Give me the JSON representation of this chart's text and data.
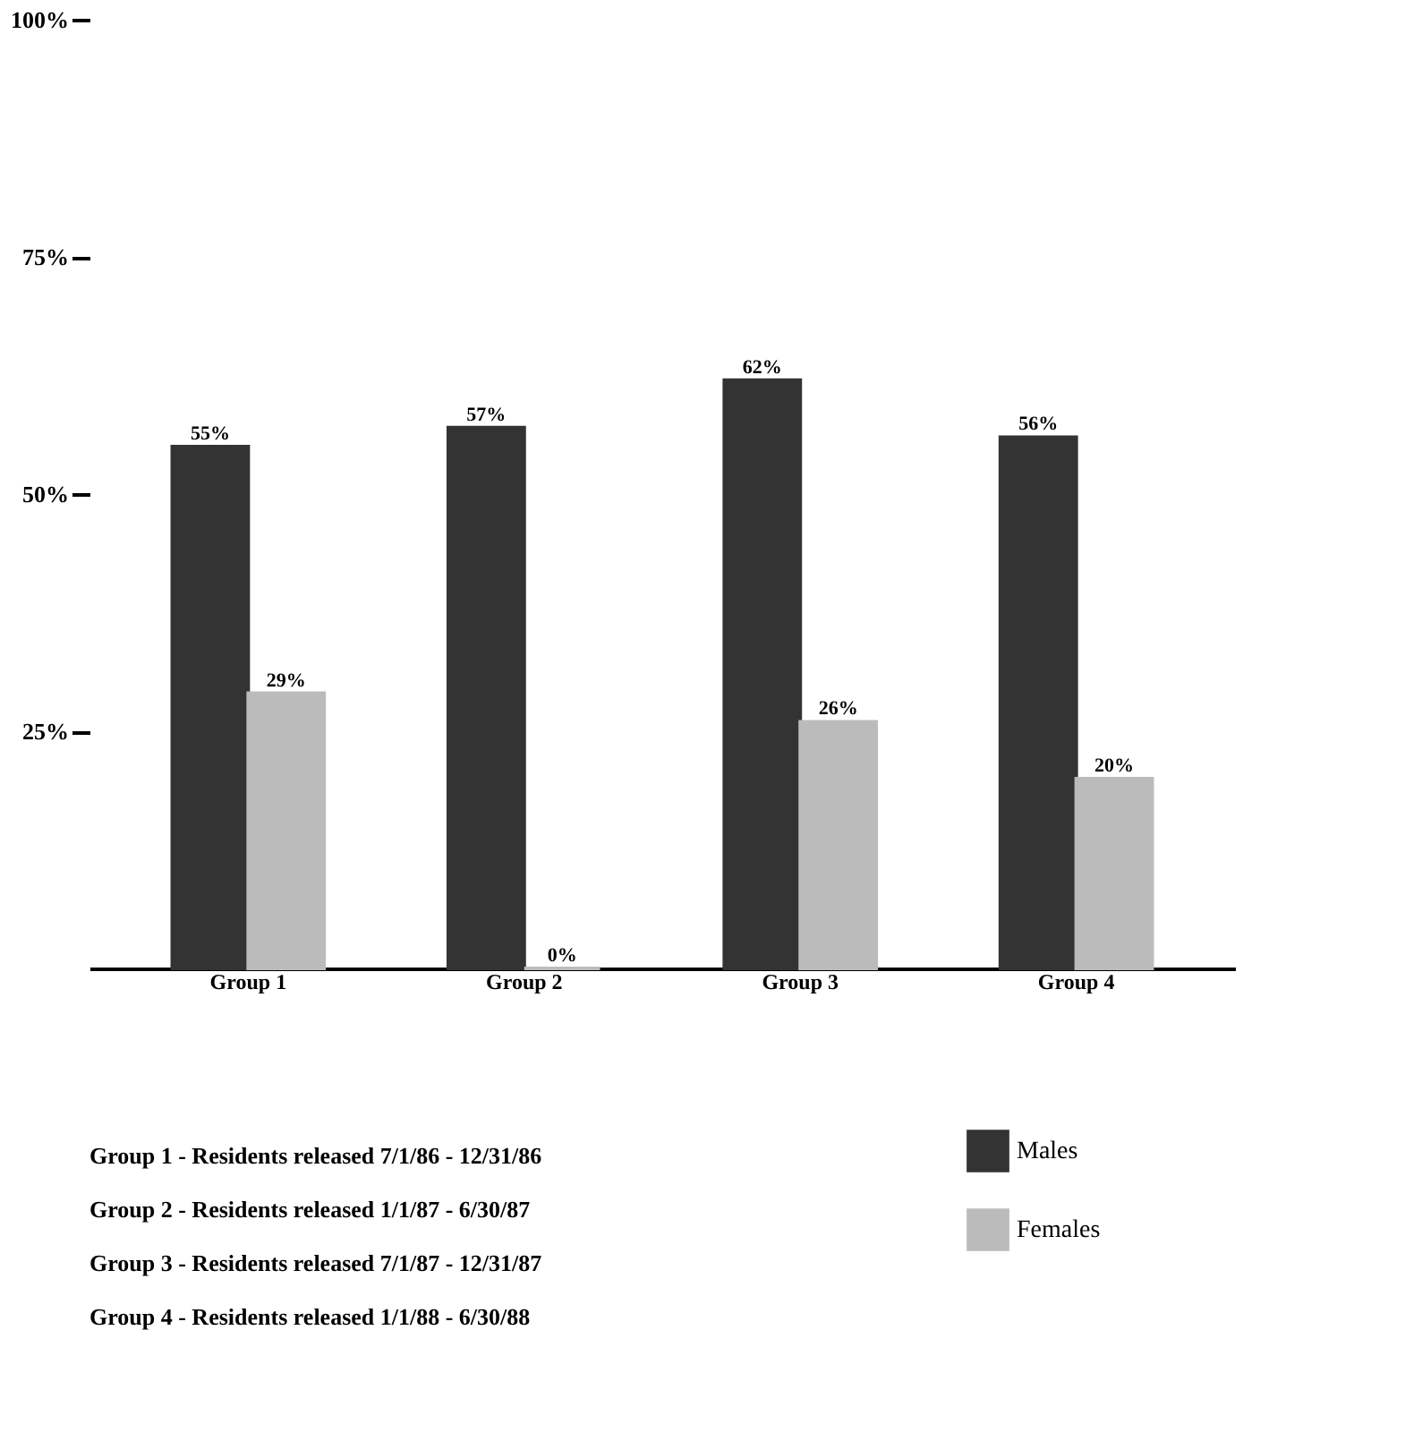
{
  "chart_data": {
    "type": "bar",
    "categories": [
      "Group 1",
      "Group 2",
      "Group 3",
      "Group 4"
    ],
    "series": [
      {
        "name": "Males",
        "color": "#333333",
        "values": [
          55,
          57,
          62,
          56
        ],
        "value_labels": [
          "55%",
          "57%",
          "62%",
          "56%"
        ]
      },
      {
        "name": "Females",
        "color": "#bbbbbb",
        "values": [
          29,
          0,
          26,
          20
        ],
        "value_labels": [
          "29%",
          "0%",
          "26%",
          "20%"
        ]
      }
    ],
    "ylim": [
      0,
      100
    ],
    "yticks": [
      {
        "value": 25,
        "label": "25%"
      },
      {
        "value": 50,
        "label": "50%"
      },
      {
        "value": 75,
        "label": "75%"
      },
      {
        "value": 100,
        "label": "100%"
      }
    ],
    "grid": false,
    "legend": "bottom right",
    "annotations": [
      "Group 1 - Residents released 7/1/86 - 12/31/86",
      "Group 2 - Residents released 1/1/87 - 6/30/87",
      "Group 3 - Residents released 7/1/87 - 12/31/87",
      "Group 4 - Residents released 1/1/88 - 6/30/88"
    ]
  }
}
